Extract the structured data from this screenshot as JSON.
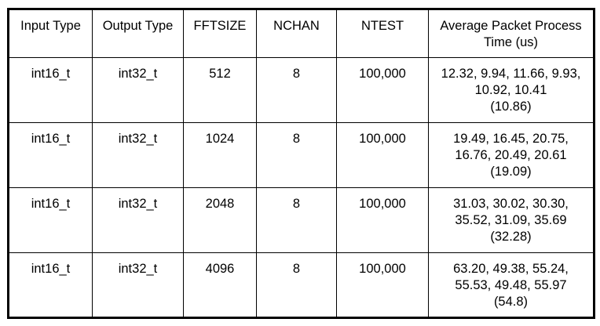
{
  "table": {
    "headers": [
      "Input Type",
      "Output Type",
      "FFTSIZE",
      "NCHAN",
      "NTEST",
      "Average Packet Process\nTime (us)"
    ],
    "rows": [
      [
        "int16_t",
        "int32_t",
        "512",
        "8",
        "100,000",
        "12.32, 9.94, 11.66, 9.93,\n10.92, 10.41\n(10.86)"
      ],
      [
        "int16_t",
        "int32_t",
        "1024",
        "8",
        "100,000",
        "19.49, 16.45, 20.75,\n16.76, 20.49, 20.61\n(19.09)"
      ],
      [
        "int16_t",
        "int32_t",
        "2048",
        "8",
        "100,000",
        "31.03, 30.02, 30.30,\n35.52, 31.09, 35.69\n(32.28)"
      ],
      [
        "int16_t",
        "int32_t",
        "4096",
        "8",
        "100,000",
        "63.20, 49.38, 55.24,\n55.53, 49.48, 55.97\n(54.8)"
      ]
    ]
  }
}
